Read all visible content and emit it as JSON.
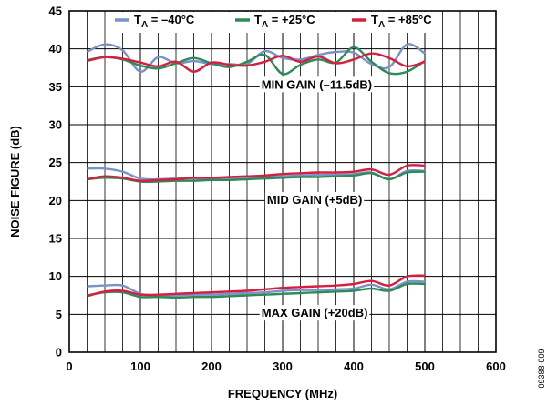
{
  "chart_data": {
    "type": "line",
    "xlabel": "FREQUENCY (MHz)",
    "ylabel": "NOISE FIGURE (dB)",
    "xlim": [
      0,
      600
    ],
    "ylim": [
      0,
      45
    ],
    "xticks": [
      0,
      100,
      200,
      300,
      400,
      500,
      600
    ],
    "yticks": [
      0,
      5,
      10,
      15,
      20,
      25,
      30,
      35,
      40,
      45
    ],
    "grid": "on",
    "legend_placement": "top",
    "legend": [
      {
        "sub_base": "T",
        "sub": "A",
        "value": " = –40°C",
        "color": "#7b92c9"
      },
      {
        "sub_base": "T",
        "sub": "A",
        "value": " = +25°C",
        "color": "#2e8b57"
      },
      {
        "sub_base": "T",
        "sub": "A",
        "value": " = +85°C",
        "color": "#d61f3f"
      }
    ],
    "annotations": [
      {
        "text": "MIN GAIN (–11.5dB)",
        "x": 348,
        "y": 35.3
      },
      {
        "text": "MID GAIN (+5dB)",
        "x": 345,
        "y": 20.1
      },
      {
        "text": "MAX GAIN (+20dB)",
        "x": 345,
        "y": 5.2
      }
    ],
    "series": [
      {
        "group": "min",
        "color": "#7b92c9",
        "x": [
          25,
          50,
          75,
          100,
          125,
          150,
          175,
          200,
          225,
          250,
          275,
          300,
          325,
          350,
          375,
          400,
          425,
          450,
          475,
          500
        ],
        "y": [
          39.6,
          40.6,
          39.8,
          37.0,
          38.9,
          38.1,
          38.4,
          38.0,
          38.0,
          38.0,
          39.7,
          38.8,
          38.6,
          39.2,
          39.6,
          39.5,
          38.0,
          37.6,
          40.6,
          39.4
        ]
      },
      {
        "group": "min",
        "color": "#2e8b57",
        "x": [
          25,
          50,
          75,
          100,
          125,
          150,
          175,
          200,
          225,
          250,
          275,
          300,
          325,
          350,
          375,
          400,
          425,
          450,
          475,
          500
        ],
        "y": [
          38.5,
          38.9,
          38.6,
          37.8,
          37.4,
          38.1,
          38.8,
          38.1,
          37.6,
          38.3,
          39.2,
          36.7,
          37.9,
          38.6,
          38.2,
          40.2,
          38.3,
          36.8,
          37.0,
          38.4
        ]
      },
      {
        "group": "min",
        "color": "#d61f3f",
        "x": [
          25,
          50,
          75,
          100,
          125,
          150,
          175,
          200,
          225,
          250,
          275,
          300,
          325,
          350,
          375,
          400,
          425,
          450,
          475,
          500
        ],
        "y": [
          38.4,
          38.9,
          38.7,
          38.2,
          37.7,
          38.3,
          37.0,
          38.2,
          37.9,
          37.8,
          38.3,
          39.1,
          38.3,
          39.0,
          38.1,
          38.6,
          39.4,
          38.8,
          37.7,
          38.3
        ]
      },
      {
        "group": "mid",
        "color": "#7b92c9",
        "x": [
          25,
          50,
          75,
          100,
          125,
          150,
          175,
          200,
          225,
          250,
          275,
          300,
          325,
          350,
          375,
          400,
          425,
          450,
          475,
          500
        ],
        "y": [
          24.2,
          24.2,
          23.8,
          22.9,
          22.8,
          22.9,
          22.9,
          22.9,
          23.0,
          23.0,
          23.1,
          23.2,
          23.3,
          23.4,
          23.4,
          23.5,
          23.7,
          22.8,
          23.9,
          23.9
        ]
      },
      {
        "group": "mid",
        "color": "#2e8b57",
        "x": [
          25,
          50,
          75,
          100,
          125,
          150,
          175,
          200,
          225,
          250,
          275,
          300,
          325,
          350,
          375,
          400,
          425,
          450,
          475,
          500
        ],
        "y": [
          22.8,
          23.0,
          22.9,
          22.5,
          22.5,
          22.6,
          22.6,
          22.7,
          22.7,
          22.8,
          22.9,
          23.0,
          23.1,
          23.1,
          23.2,
          23.3,
          23.6,
          22.8,
          23.7,
          23.8
        ]
      },
      {
        "group": "mid",
        "color": "#d61f3f",
        "x": [
          25,
          50,
          75,
          100,
          125,
          150,
          175,
          200,
          225,
          250,
          275,
          300,
          325,
          350,
          375,
          400,
          425,
          450,
          475,
          500
        ],
        "y": [
          22.8,
          23.2,
          23.0,
          22.6,
          22.7,
          22.8,
          23.0,
          23.0,
          23.1,
          23.2,
          23.3,
          23.5,
          23.6,
          23.7,
          23.7,
          23.8,
          24.1,
          23.4,
          24.6,
          24.6
        ]
      },
      {
        "group": "max",
        "color": "#7b92c9",
        "x": [
          25,
          50,
          75,
          100,
          125,
          150,
          175,
          200,
          225,
          250,
          275,
          300,
          325,
          350,
          375,
          400,
          425,
          450,
          475,
          500
        ],
        "y": [
          8.7,
          8.8,
          8.8,
          7.7,
          7.5,
          7.5,
          7.6,
          7.6,
          7.7,
          7.8,
          7.9,
          8.1,
          8.2,
          8.2,
          8.3,
          8.4,
          8.9,
          8.3,
          9.3,
          9.3
        ]
      },
      {
        "group": "max",
        "color": "#2e8b57",
        "x": [
          25,
          50,
          75,
          100,
          125,
          150,
          175,
          200,
          225,
          250,
          275,
          300,
          325,
          350,
          375,
          400,
          425,
          450,
          475,
          500
        ],
        "y": [
          7.5,
          7.9,
          7.9,
          7.3,
          7.3,
          7.2,
          7.3,
          7.3,
          7.4,
          7.5,
          7.6,
          7.7,
          7.8,
          7.9,
          8.0,
          8.1,
          8.4,
          8.1,
          9.0,
          9.0
        ]
      },
      {
        "group": "max",
        "color": "#d61f3f",
        "x": [
          25,
          50,
          75,
          100,
          125,
          150,
          175,
          200,
          225,
          250,
          275,
          300,
          325,
          350,
          375,
          400,
          425,
          450,
          475,
          500
        ],
        "y": [
          7.4,
          8.0,
          8.1,
          7.6,
          7.6,
          7.7,
          7.8,
          7.9,
          8.0,
          8.1,
          8.3,
          8.5,
          8.6,
          8.7,
          8.8,
          9.0,
          9.4,
          8.8,
          10.0,
          10.1
        ]
      }
    ]
  },
  "doc_id": "09388-009"
}
